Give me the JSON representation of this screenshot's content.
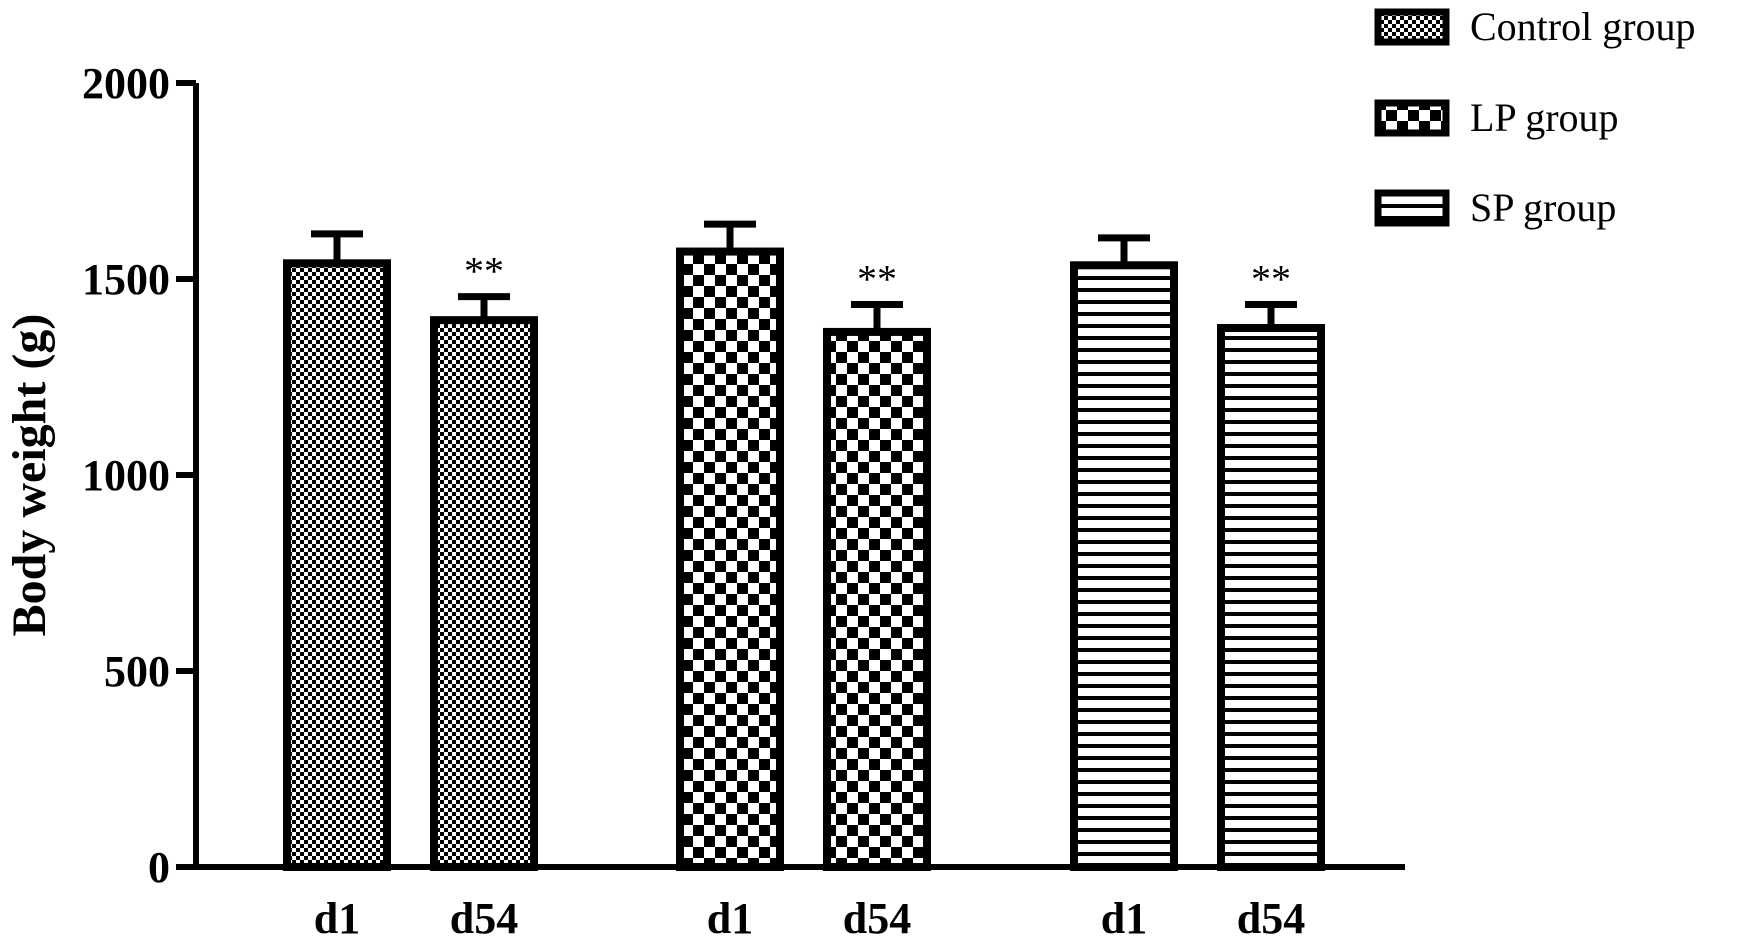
{
  "chart_data": {
    "type": "bar",
    "ylabel": "Body weight (g)",
    "xlabel": "",
    "title": "",
    "ylim": [
      0,
      2000
    ],
    "yticks": [
      0,
      500,
      1000,
      1500,
      2000
    ],
    "grid": false,
    "legend_position": "top-right",
    "groups": [
      {
        "name": "Control group",
        "pattern": "fine-dots",
        "bars": [
          {
            "category": "d1",
            "value": 1540,
            "error": 75,
            "annotation": ""
          },
          {
            "category": "d54",
            "value": 1395,
            "error": 60,
            "annotation": "**"
          }
        ]
      },
      {
        "name": "LP group",
        "pattern": "checkerboard",
        "bars": [
          {
            "category": "d1",
            "value": 1570,
            "error": 70,
            "annotation": ""
          },
          {
            "category": "d54",
            "value": 1365,
            "error": 70,
            "annotation": "**"
          }
        ]
      },
      {
        "name": "SP group",
        "pattern": "horizontal-stripes",
        "bars": [
          {
            "category": "d1",
            "value": 1535,
            "error": 70,
            "annotation": ""
          },
          {
            "category": "d54",
            "value": 1375,
            "error": 60,
            "annotation": "**"
          }
        ]
      }
    ],
    "colors": {
      "stroke": "#000000",
      "fill_dark": "#000000",
      "fill_light": "#ffffff"
    }
  }
}
